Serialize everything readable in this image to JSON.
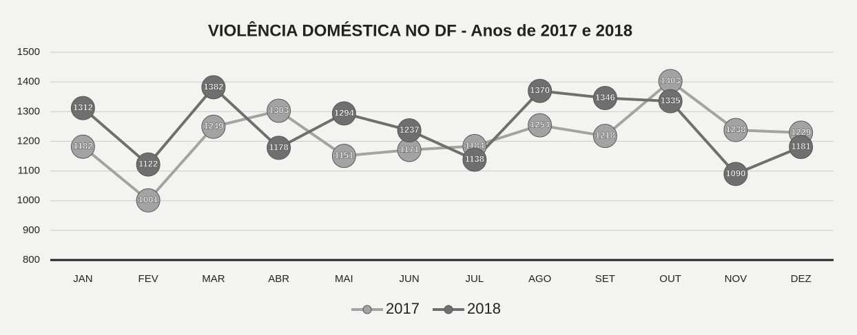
{
  "chart_data": {
    "type": "line",
    "title": "VIOLÊNCIA DOMÉSTICA NO DF - Anos de 2017 e 2018",
    "categories": [
      "JAN",
      "FEV",
      "MAR",
      "ABR",
      "MAI",
      "JUN",
      "JUL",
      "AGO",
      "SET",
      "OUT",
      "NOV",
      "DEZ"
    ],
    "series": [
      {
        "name": "2017",
        "color": "#a3a3a3",
        "values": [
          1182,
          1001,
          1249,
          1303,
          1151,
          1171,
          1184,
          1254,
          1218,
          1403,
          1238,
          1229
        ]
      },
      {
        "name": "2018",
        "color": "#6f6f6f",
        "values": [
          1312,
          1122,
          1382,
          1178,
          1294,
          1237,
          1138,
          1370,
          1346,
          1335,
          1090,
          1181
        ]
      }
    ],
    "ylim": [
      800,
      1500
    ],
    "yticks": [
      800,
      900,
      1000,
      1100,
      1200,
      1300,
      1400,
      1500
    ],
    "grid": true,
    "legend": "bottom"
  }
}
